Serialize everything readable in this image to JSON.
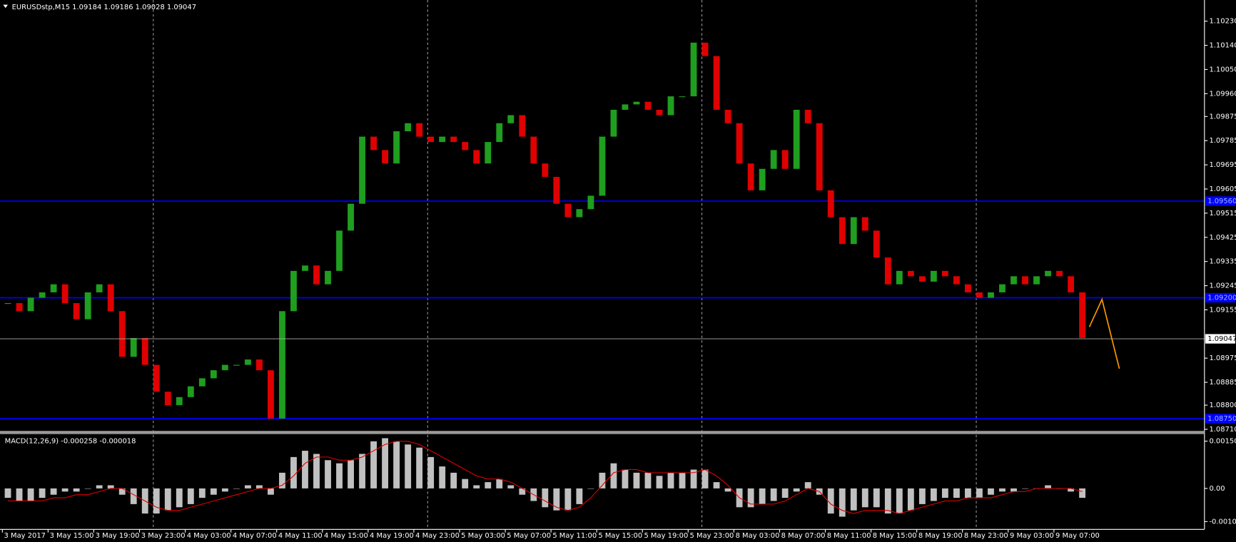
{
  "chart_data": [
    {
      "type": "candlestick",
      "title": "EURUSDstp,M15  1.09184 1.09186 1.09028 1.09047",
      "up_color": "#1f9e1f",
      "down_color": "#e00000",
      "close": [
        1.0918,
        1.0915,
        1.092,
        1.0922,
        1.0925,
        1.0918,
        1.0912,
        1.0922,
        1.0925,
        1.0915,
        1.0898,
        1.0905,
        1.0895,
        1.0885,
        1.088,
        1.0883,
        1.0887,
        1.089,
        1.0893,
        1.0895,
        1.0895,
        1.0897,
        1.0893,
        1.0875,
        1.0915,
        1.093,
        1.0932,
        1.0925,
        1.093,
        1.0945,
        1.0955,
        1.098,
        1.0975,
        1.097,
        1.0982,
        1.0985,
        1.098,
        1.0978,
        1.098,
        1.0978,
        1.0975,
        1.097,
        1.0978,
        1.0985,
        1.0988,
        1.098,
        1.097,
        1.0965,
        1.0955,
        1.095,
        1.0953,
        1.0958,
        1.098,
        1.099,
        1.0992,
        1.0993,
        1.099,
        1.0988,
        1.0995,
        1.0995,
        1.1015,
        1.101,
        1.099,
        1.0985,
        1.097,
        1.096,
        1.0968,
        1.0975,
        1.0968,
        1.099,
        1.0985,
        1.096,
        1.095,
        1.094,
        1.095,
        1.0945,
        1.0935,
        1.0925,
        1.093,
        1.0928,
        1.0926,
        1.093,
        1.0928,
        1.0925,
        1.0922,
        1.092,
        1.0922,
        1.0925,
        1.0928,
        1.0925,
        1.0928,
        1.093,
        1.0928,
        1.0922,
        1.0905
      ],
      "last": 1.09047,
      "levels": [
        {
          "value": 1.0956,
          "label": "1.09560"
        },
        {
          "value": 1.092,
          "label": "1.09200"
        },
        {
          "value": 1.0875,
          "label": "1.08750"
        }
      ],
      "level_color": "#0000ff",
      "ylim": [
        1.08704,
        1.103
      ],
      "yticks": [
        {
          "value": 1.1023,
          "label": "1.10230"
        },
        {
          "value": 1.1014,
          "label": "1.10140"
        },
        {
          "value": 1.1005,
          "label": "1.10050"
        },
        {
          "value": 1.0996,
          "label": "1.09960"
        },
        1.09875,
        1.09785,
        1.09695,
        {
          "value": 1.09605,
          "label": "1.09605"
        },
        1.09515,
        1.09425,
        1.09335,
        1.09245,
        1.09155,
        {
          "value": 1.08975,
          "label": "1.08975"
        },
        1.08885,
        {
          "value": 1.088,
          "label": "1.08800"
        },
        {
          "value": 1.0871,
          "label": "1.08710"
        }
      ],
      "time_labels": [
        "3 May 2017",
        "3 May 15:00",
        "3 May 19:00",
        "3 May 23:00",
        "4 May 03:00",
        "4 May 07:00",
        "4 May 11:00",
        "4 May 15:00",
        "4 May 19:00",
        "4 May 23:00",
        "5 May 03:00",
        "5 May 07:00",
        "5 May 11:00",
        "5 May 15:00",
        "5 May 19:00",
        "5 May 23:00",
        "8 May 03:00",
        "8 May 07:00",
        "8 May 11:00",
        "8 May 15:00",
        "8 May 19:00",
        "8 May 23:00",
        "9 May 03:00",
        "9 May 07:00"
      ]
    },
    {
      "type": "macd",
      "title": "MACD(12,26,9) -0.000258 -0.000018",
      "histogram_color": "#c0c0c0",
      "signal_color": "#e00000",
      "histogram": [
        -0.0003,
        -0.0004,
        -0.0004,
        -0.0003,
        -0.0002,
        -0.0001,
        -0.0001,
        0.0,
        0.0001,
        0.0001,
        -0.0002,
        -0.0005,
        -0.0008,
        -0.0008,
        -0.0007,
        -0.0006,
        -0.0005,
        -0.0003,
        -0.0002,
        -0.0001,
        0.0,
        0.0001,
        0.0001,
        -0.0002,
        0.0005,
        0.001,
        0.0012,
        0.0011,
        0.0009,
        0.0008,
        0.0009,
        0.0011,
        0.0015,
        0.0016,
        0.0015,
        0.0014,
        0.0013,
        0.001,
        0.0007,
        0.0005,
        0.0003,
        0.0001,
        0.0002,
        0.0003,
        0.0001,
        -0.0002,
        -0.0004,
        -0.0006,
        -0.0007,
        -0.0007,
        -0.0005,
        0.0,
        0.0005,
        0.0008,
        0.0006,
        0.0005,
        0.0005,
        0.0004,
        0.0005,
        0.0005,
        0.0006,
        0.0006,
        0.0002,
        -0.0001,
        -0.0006,
        -0.0006,
        -0.0005,
        -0.0004,
        -0.0003,
        -0.0001,
        0.0002,
        -0.0002,
        -0.0008,
        -0.0009,
        -0.0007,
        -0.0006,
        -0.0006,
        -0.0008,
        -0.0008,
        -0.0007,
        -0.0005,
        -0.0004,
        -0.0003,
        -0.0003,
        -0.0003,
        -0.0003,
        -0.0002,
        -0.0001,
        -0.0001,
        0.0,
        0.0,
        0.0001,
        0.0,
        -0.0001,
        -0.0003
      ],
      "signal": [
        -0.0004,
        -0.0004,
        -0.0004,
        -0.0004,
        -0.0003,
        -0.0003,
        -0.0002,
        -0.0002,
        -0.0001,
        0.0,
        0.0,
        -0.0002,
        -0.0004,
        -0.0006,
        -0.0007,
        -0.0007,
        -0.0006,
        -0.0005,
        -0.0004,
        -0.0003,
        -0.0002,
        -0.0001,
        0.0,
        0.0,
        0.0001,
        0.0004,
        0.0008,
        0.001,
        0.001,
        0.0009,
        0.0009,
        0.001,
        0.0012,
        0.0014,
        0.0015,
        0.0015,
        0.0014,
        0.0012,
        0.001,
        0.0008,
        0.0006,
        0.0004,
        0.0003,
        0.0003,
        0.0002,
        0.0,
        -0.0002,
        -0.0004,
        -0.0006,
        -0.0007,
        -0.0006,
        -0.0003,
        0.0001,
        0.0005,
        0.0006,
        0.0006,
        0.0005,
        0.0005,
        0.0005,
        0.0005,
        0.0005,
        0.0006,
        0.0004,
        0.0001,
        -0.0003,
        -0.0005,
        -0.0005,
        -0.0005,
        -0.0004,
        -0.0002,
        0.0,
        -0.0001,
        -0.0005,
        -0.0007,
        -0.0008,
        -0.0007,
        -0.0007,
        -0.0007,
        -0.0008,
        -0.0007,
        -0.0006,
        -0.0005,
        -0.0004,
        -0.0004,
        -0.0003,
        -0.0003,
        -0.0003,
        -0.0002,
        -0.0001,
        -0.0001,
        0.0,
        0.0,
        0.0,
        0.0,
        -0.0001
      ],
      "ylim": [
        -0.001305,
        0.001732
      ],
      "yticks": [
        0.001506,
        {
          "value": 0,
          "label": "0.00"
        },
        -0.001057
      ]
    }
  ]
}
